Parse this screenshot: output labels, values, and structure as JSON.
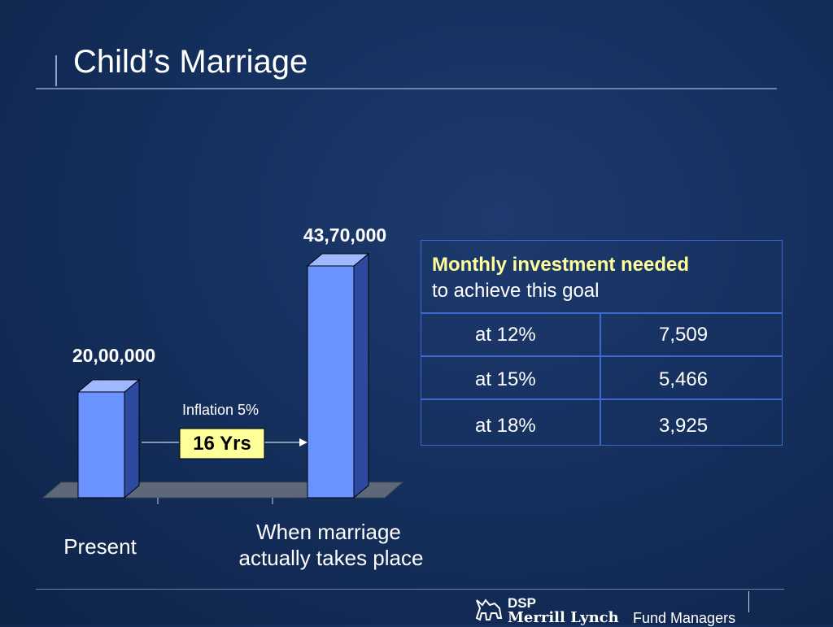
{
  "title": "Child’s Marriage",
  "chart_data": {
    "type": "bar",
    "categories": [
      "Present",
      "When marriage actually takes place"
    ],
    "category_lines": [
      [
        "Present"
      ],
      [
        "When marriage",
        "actually takes place"
      ]
    ],
    "values": [
      2000000,
      4370000
    ],
    "value_labels": [
      "20,00,000",
      "43,70,000"
    ],
    "annotation": {
      "label": "Inflation 5%",
      "duration": "16 Yrs"
    },
    "colors": {
      "bar_front": "#6a93ff",
      "bar_side": "#2e4aa0",
      "bar_top": "#9fb8ff",
      "floor": "#5d6878"
    }
  },
  "investment_table": {
    "heading_highlight": "Monthly investment needed",
    "heading_rest": "to achieve this goal",
    "rows": [
      {
        "rate": "at 12%",
        "amount": "7,509"
      },
      {
        "rate": "at 15%",
        "amount": "5,466"
      },
      {
        "rate": "at 18%",
        "amount": "3,925"
      }
    ]
  },
  "footer": {
    "brand_line1": "DSP",
    "brand_line2": "Merrill Lynch",
    "brand_suffix": "Fund Managers",
    "logo_icon": "bull-icon"
  }
}
